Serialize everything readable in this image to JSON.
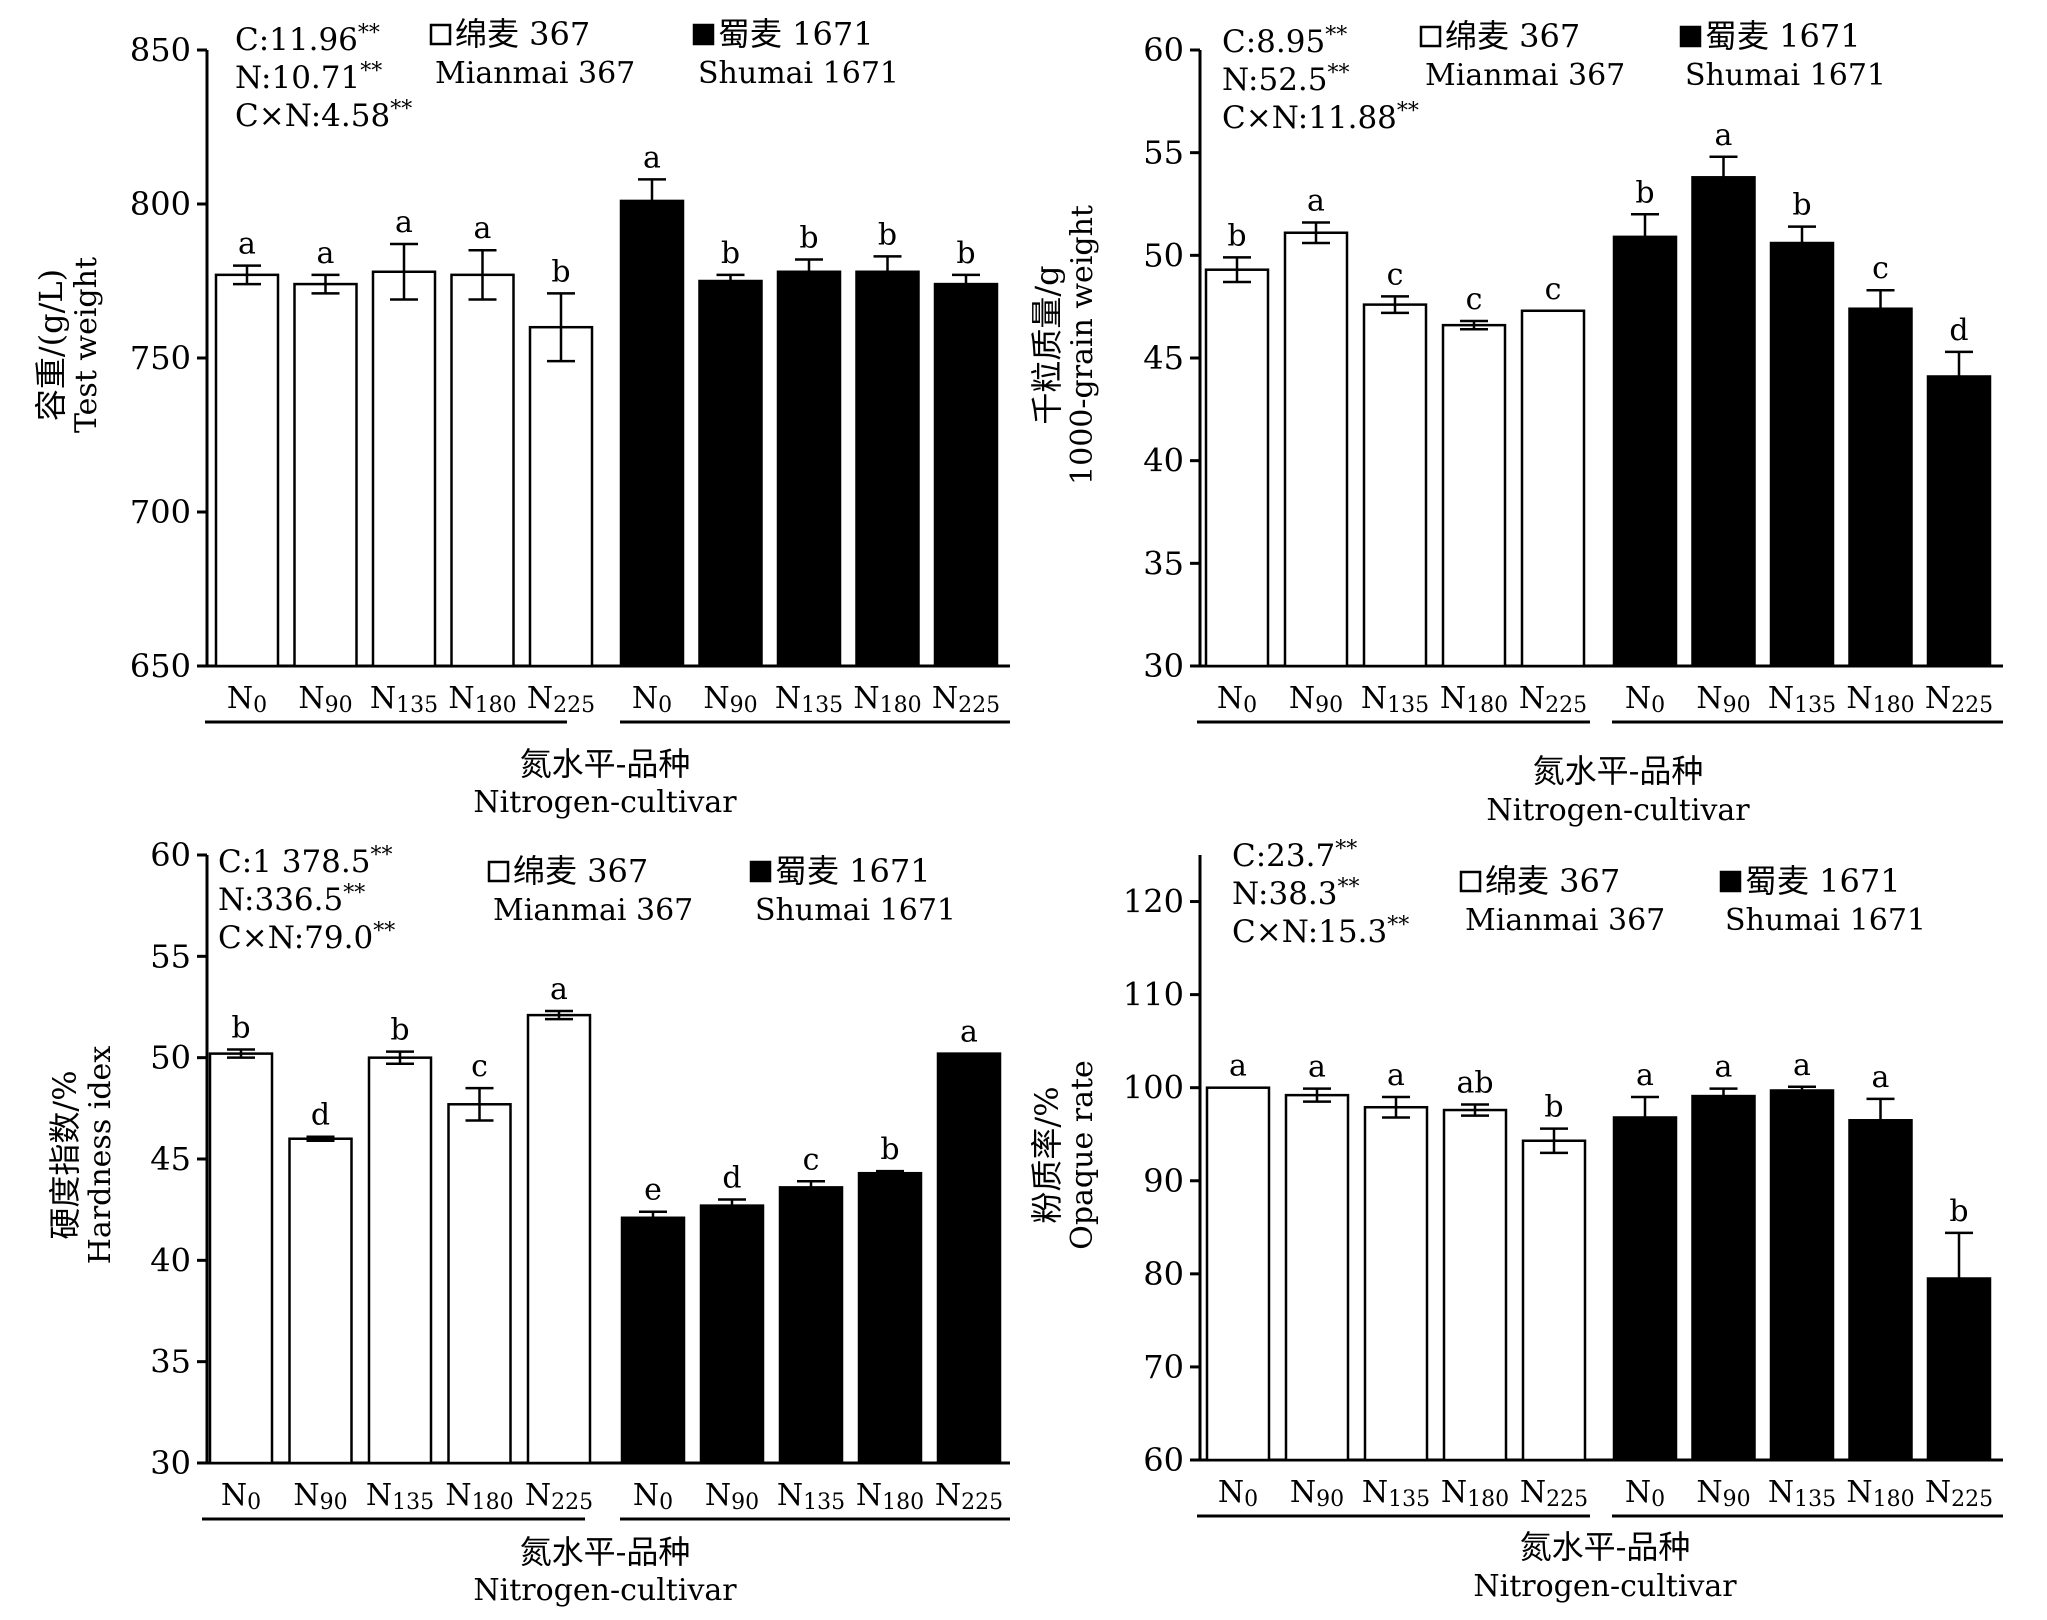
{
  "chart_data": [
    {
      "type": "bar",
      "ylabel_cn": "容重/(g/L)",
      "ylabel_en": "Test weight",
      "xlabel_cn": "氮水平-品种",
      "xlabel_en": "Nitrogen-cultivar",
      "ylim": [
        650,
        850
      ],
      "yticks": [
        "650",
        "700",
        "750",
        "800",
        "850"
      ],
      "stats": [
        "C:11.96**",
        "N:10.71**",
        "C×N:4.58**"
      ],
      "legend": [
        {
          "cn": "绵麦 367",
          "en": "Mianmai 367",
          "fill": "#ffffff"
        },
        {
          "cn": "蜀麦 1671",
          "en": "Shumai 1671",
          "fill": "#000000"
        }
      ],
      "categories": [
        "N0",
        "N90",
        "N135",
        "N180",
        "N225"
      ],
      "series": [
        {
          "name": "Mianmai 367",
          "values": [
            777,
            774,
            778,
            777,
            760
          ],
          "errors": [
            3,
            3,
            9,
            8,
            11
          ],
          "letters": [
            "a",
            "a",
            "a",
            "a",
            "b"
          ]
        },
        {
          "name": "Shumai 1671",
          "values": [
            801,
            775,
            778,
            778,
            774
          ],
          "errors": [
            7,
            2,
            4,
            5,
            3
          ],
          "letters": [
            "a",
            "b",
            "b",
            "b",
            "b"
          ]
        }
      ]
    },
    {
      "type": "bar",
      "ylabel_cn": "千粒质量/g",
      "ylabel_en": "1000-grain weight",
      "xlabel_cn": "氮水平-品种",
      "xlabel_en": "Nitrogen-cultivar",
      "ylim": [
        30,
        60
      ],
      "yticks": [
        "30",
        "35",
        "40",
        "45",
        "50",
        "55",
        "60"
      ],
      "stats": [
        "C:8.95**",
        "N:52.5**",
        "C×N:11.88**"
      ],
      "legend": [
        {
          "cn": "绵麦 367",
          "en": "Mianmai 367",
          "fill": "#ffffff"
        },
        {
          "cn": "蜀麦 1671",
          "en": "Shumai 1671",
          "fill": "#000000"
        }
      ],
      "categories": [
        "N0",
        "N90",
        "N135",
        "N180",
        "N225"
      ],
      "series": [
        {
          "name": "Mianmai 367",
          "values": [
            49.3,
            51.1,
            47.6,
            46.6,
            47.3
          ],
          "errors": [
            0.6,
            0.5,
            0.4,
            0.2,
            0.0
          ],
          "letters": [
            "b",
            "a",
            "c",
            "c",
            "c"
          ]
        },
        {
          "name": "Shumai 1671",
          "values": [
            50.9,
            53.8,
            50.6,
            47.4,
            44.1
          ],
          "errors": [
            1.1,
            1.0,
            0.8,
            0.9,
            1.2
          ],
          "letters": [
            "b",
            "a",
            "b",
            "c",
            "d"
          ]
        }
      ]
    },
    {
      "type": "bar",
      "ylabel_cn": "硬度指数/%",
      "ylabel_en": "Hardness idex",
      "xlabel_cn": "氮水平-品种",
      "xlabel_en": "Nitrogen-cultivar",
      "ylim": [
        30,
        60
      ],
      "yticks": [
        "30",
        "35",
        "40",
        "45",
        "50",
        "55",
        "60"
      ],
      "stats": [
        "C:1 378.5**",
        "N:336.5**",
        "C×N:79.0**"
      ],
      "legend": [
        {
          "cn": "绵麦 367",
          "en": "Mianmai 367",
          "fill": "#ffffff"
        },
        {
          "cn": "蜀麦 1671",
          "en": "Shumai 1671",
          "fill": "#000000"
        }
      ],
      "categories": [
        "N0",
        "N90",
        "N135",
        "N180",
        "N225"
      ],
      "series": [
        {
          "name": "Mianmai 367",
          "values": [
            50.2,
            46.0,
            50.0,
            47.7,
            52.1
          ],
          "errors": [
            0.2,
            0.1,
            0.3,
            0.8,
            0.2
          ],
          "letters": [
            "b",
            "d",
            "b",
            "c",
            "a"
          ]
        },
        {
          "name": "Shumai 1671",
          "values": [
            42.1,
            42.7,
            43.6,
            44.3,
            50.2
          ],
          "errors": [
            0.3,
            0.3,
            0.3,
            0.1,
            0.0
          ],
          "letters": [
            "e",
            "d",
            "c",
            "b",
            "a"
          ]
        }
      ]
    },
    {
      "type": "bar",
      "ylabel_cn": "粉质率/%",
      "ylabel_en": "Opaque rate",
      "xlabel_cn": "氮水平-品种",
      "xlabel_en": "Nitrogen-cultivar",
      "ylim": [
        60,
        125
      ],
      "yticks": [
        "60",
        "70",
        "80",
        "90",
        "100",
        "110",
        "120"
      ],
      "stats": [
        "C:23.7**",
        "N:38.3**",
        "C×N:15.3**"
      ],
      "legend": [
        {
          "cn": "绵麦 367",
          "en": "Mianmai 367",
          "fill": "#ffffff"
        },
        {
          "cn": "蜀麦 1671",
          "en": "Shumai 1671",
          "fill": "#000000"
        }
      ],
      "categories": [
        "N0",
        "N90",
        "N135",
        "N180",
        "N225"
      ],
      "series": [
        {
          "name": "Mianmai 367",
          "values": [
            100.0,
            99.2,
            97.9,
            97.6,
            94.3
          ],
          "errors": [
            0.0,
            0.7,
            1.1,
            0.6,
            1.3
          ],
          "letters": [
            "a",
            "a",
            "a",
            "ab",
            "b"
          ]
        },
        {
          "name": "Shumai 1671",
          "values": [
            96.8,
            99.1,
            99.7,
            96.5,
            79.5
          ],
          "errors": [
            2.2,
            0.8,
            0.4,
            2.3,
            4.9
          ],
          "letters": [
            "a",
            "a",
            "a",
            "a",
            "b"
          ]
        }
      ]
    }
  ]
}
